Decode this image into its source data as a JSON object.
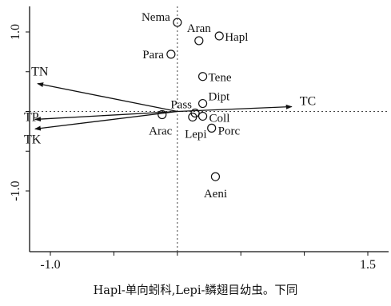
{
  "chart_data": {
    "type": "scatter",
    "xlim": [
      -1.0,
      1.5
    ],
    "ylim": [
      -1.0,
      1.0
    ],
    "x_ticks": [
      -1.0,
      1.5
    ],
    "y_ticks": [
      -1.0,
      1.0
    ],
    "species": [
      {
        "name": "Nema",
        "x": 0.0,
        "y": 1.12
      },
      {
        "name": "Aran",
        "x": 0.17,
        "y": 0.89
      },
      {
        "name": "Hapl",
        "x": 0.33,
        "y": 0.95
      },
      {
        "name": "Para",
        "x": -0.05,
        "y": 0.72
      },
      {
        "name": "Tene",
        "x": 0.2,
        "y": 0.44
      },
      {
        "name": "Dipt",
        "x": 0.2,
        "y": 0.1
      },
      {
        "name": "Pass",
        "x": 0.14,
        "y": -0.02
      },
      {
        "name": "Coll",
        "x": 0.2,
        "y": -0.06
      },
      {
        "name": "Lepi",
        "x": 0.12,
        "y": -0.07
      },
      {
        "name": "Arac",
        "x": -0.12,
        "y": -0.04
      },
      {
        "name": "Porc",
        "x": 0.27,
        "y": -0.21
      },
      {
        "name": "Aeni",
        "x": 0.3,
        "y": -0.82
      }
    ],
    "arrows": [
      {
        "name": "TN",
        "x": -1.1,
        "y": 0.35
      },
      {
        "name": "TP",
        "x": -1.12,
        "y": -0.1
      },
      {
        "name": "TK",
        "x": -1.12,
        "y": -0.22
      },
      {
        "name": "TC",
        "x": 0.9,
        "y": 0.06
      }
    ]
  },
  "caption": "Hapl-单向蚓科,Lepi-鳞翅目幼虫。下同"
}
